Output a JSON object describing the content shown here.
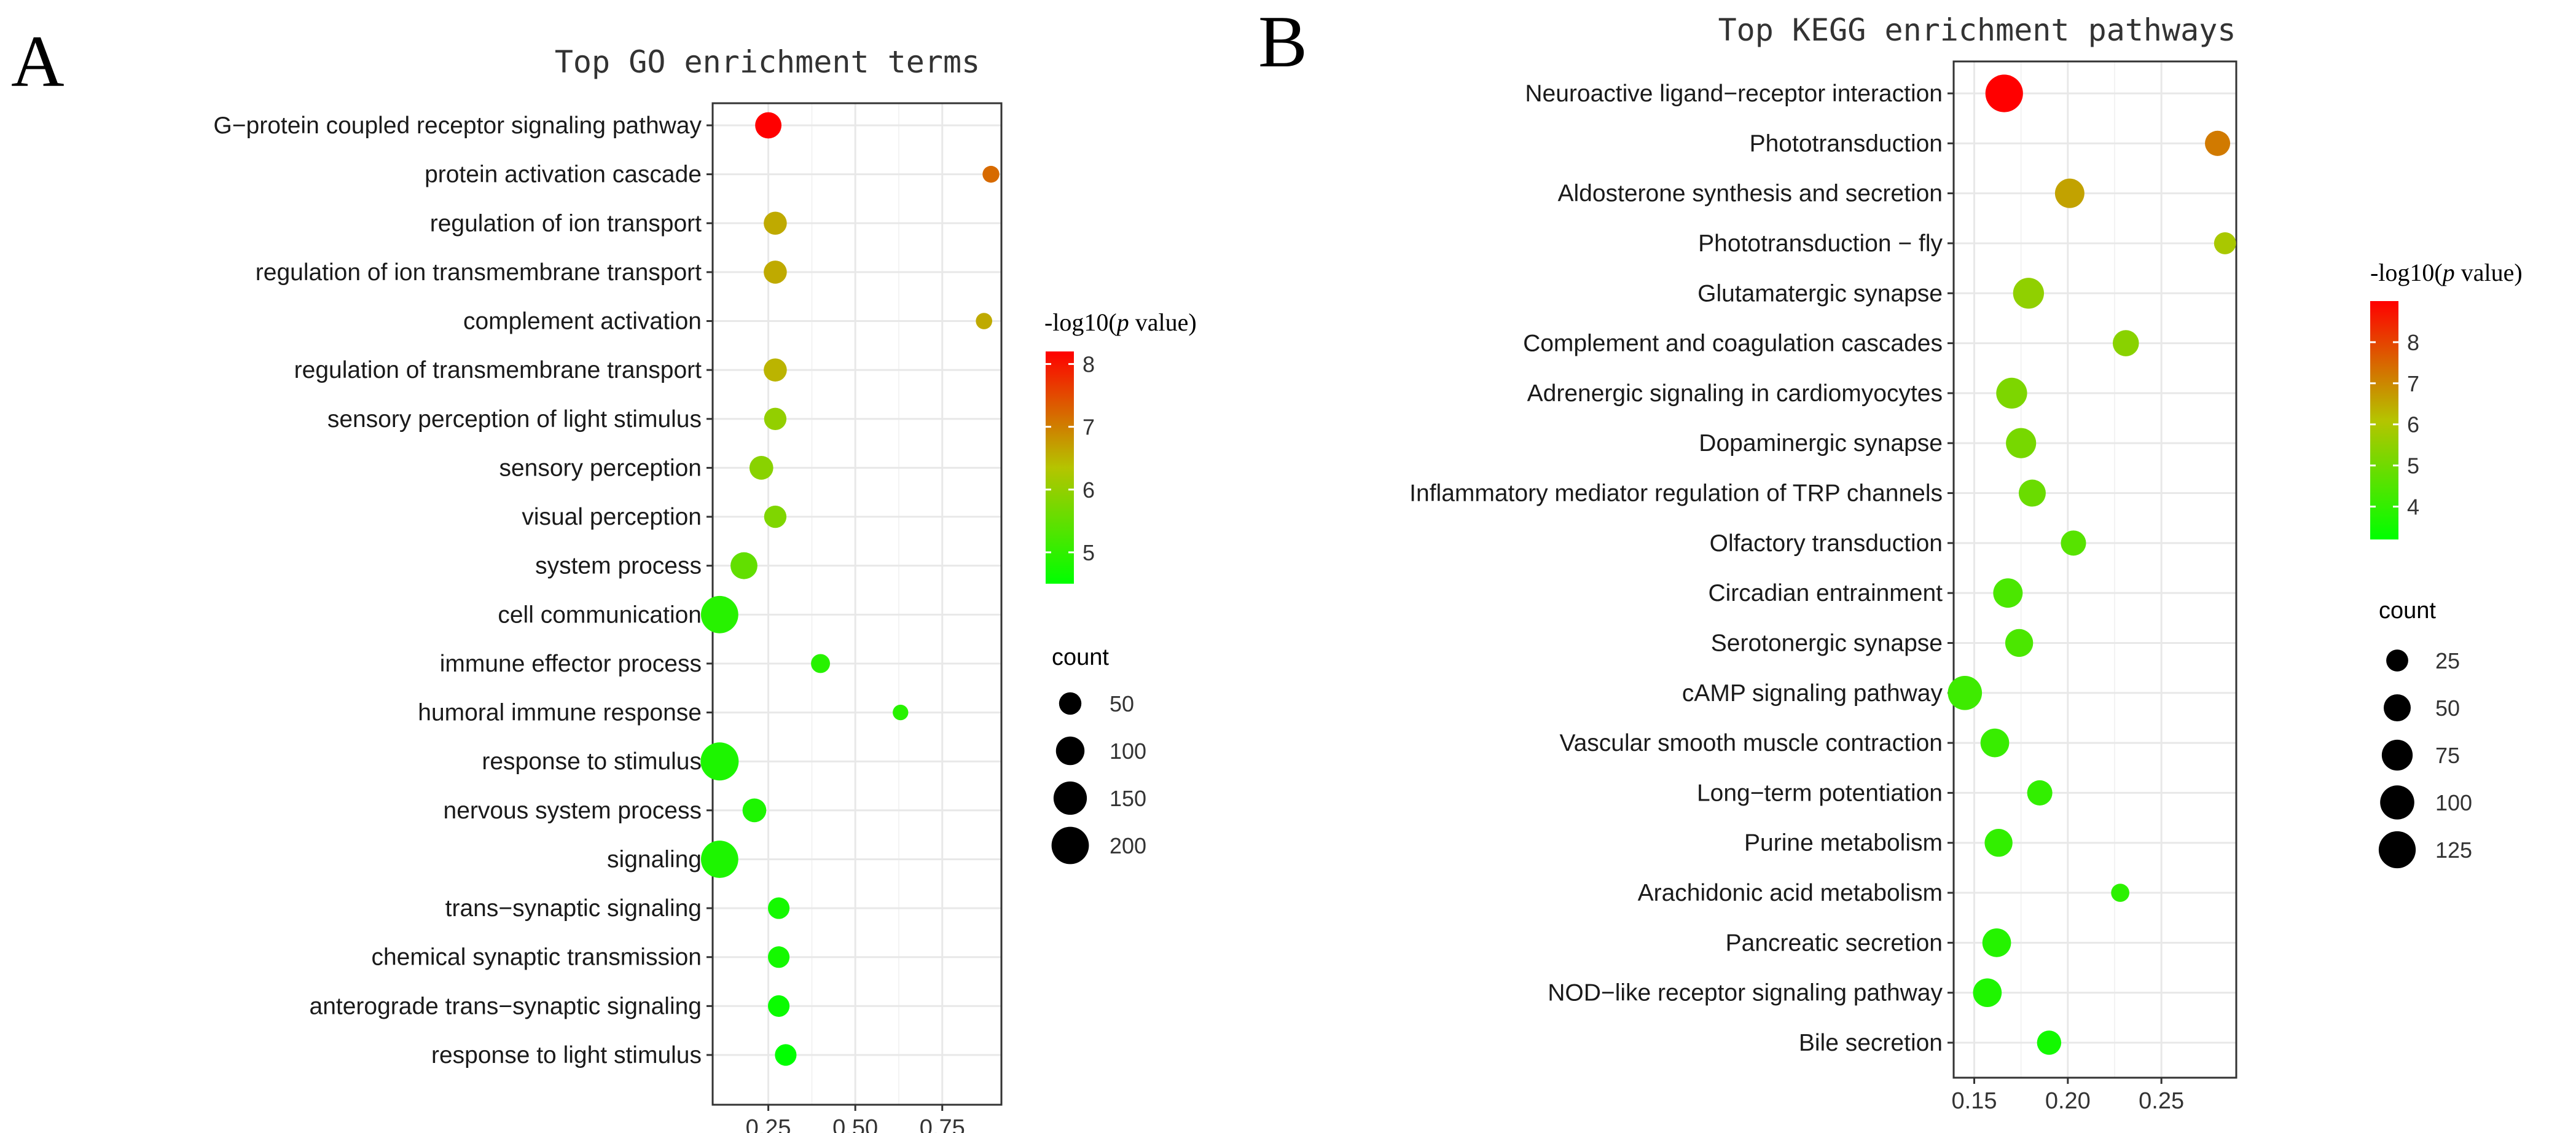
{
  "chart_data": [
    {
      "type": "scatter",
      "panel_label": "A",
      "title": "Top GO enrichment terms",
      "xlabel": "",
      "ylabel": "",
      "xlim": [
        0.09,
        0.92
      ],
      "xticks": [
        0.25,
        0.5,
        0.75
      ],
      "xtick_labels": [
        "0.25",
        "0.50",
        "0.75"
      ],
      "color_legend": {
        "title_prefix": "-log10(",
        "title_italic": "p",
        "title_suffix": " value)",
        "min": 4.5,
        "max": 8.2,
        "ticks": [
          8,
          7,
          6,
          5
        ],
        "tick_labels": [
          "8",
          "7",
          "6",
          "5"
        ]
      },
      "size_legend": {
        "title": "count",
        "values": [
          50,
          100,
          150,
          200
        ],
        "labels": [
          "50",
          "100",
          "150",
          "200"
        ],
        "max_count": 210
      },
      "categories": [
        "G−protein coupled receptor signaling pathway",
        "protein activation cascade",
        "regulation of ion transport",
        "regulation of ion transmembrane transport",
        "complement activation",
        "regulation of transmembrane transport",
        "sensory perception of light stimulus",
        "sensory perception",
        "visual perception",
        "system process",
        "cell communication",
        "immune effector process",
        "humoral immune response",
        "response to stimulus",
        "nervous system process",
        "signaling",
        "trans−synaptic signaling",
        "chemical synaptic transmission",
        "anterograde trans−synaptic signaling",
        "response to light stimulus"
      ],
      "x": [
        0.25,
        0.89,
        0.27,
        0.27,
        0.87,
        0.27,
        0.27,
        0.23,
        0.27,
        0.18,
        0.11,
        0.4,
        0.63,
        0.11,
        0.21,
        0.11,
        0.28,
        0.28,
        0.28,
        0.3
      ],
      "neg_log10_p": [
        8.2,
        7.2,
        6.6,
        6.6,
        6.6,
        6.5,
        6.0,
        5.9,
        5.8,
        5.5,
        4.9,
        4.9,
        4.9,
        4.8,
        4.8,
        4.8,
        4.7,
        4.7,
        4.6,
        4.5
      ],
      "count": [
        80,
        20,
        55,
        55,
        18,
        55,
        50,
        60,
        50,
        85,
        200,
        30,
        15,
        210,
        60,
        200,
        45,
        45,
        45,
        45
      ]
    },
    {
      "type": "scatter",
      "panel_label": "B",
      "title": "Top KEGG enrichment pathways",
      "xlabel": "",
      "ylabel": "",
      "xlim": [
        0.139,
        0.29
      ],
      "xticks": [
        0.15,
        0.2,
        0.25
      ],
      "xtick_labels": [
        "0.15",
        "0.20",
        "0.25"
      ],
      "color_legend": {
        "title_prefix": "-log10(",
        "title_italic": "p",
        "title_suffix": " value)",
        "min": 3.2,
        "max": 9.0,
        "ticks": [
          8,
          7,
          6,
          5,
          4
        ],
        "tick_labels": [
          "8",
          "7",
          "6",
          "5",
          "4"
        ]
      },
      "size_legend": {
        "title": "count",
        "values": [
          25,
          50,
          75,
          100,
          125
        ],
        "labels": [
          "25",
          "50",
          "75",
          "100",
          "125"
        ],
        "max_count": 135
      },
      "categories": [
        "Neuroactive ligand−receptor interaction",
        "Phototransduction",
        "Aldosterone synthesis and secretion",
        "Phototransduction − fly",
        "Glutamatergic synapse",
        "Complement and coagulation cascades",
        "Adrenergic signaling in cardiomyocytes",
        "Dopaminergic synapse",
        "Inflammatory mediator regulation of TRP channels",
        "Olfactory transduction",
        "Circadian entrainment",
        "Serotonergic synapse",
        "cAMP signaling pathway",
        "Vascular smooth muscle contraction",
        "Long−term potentiation",
        "Purine metabolism",
        "Arachidonic acid metabolism",
        "Pancreatic secretion",
        "NOD−like receptor signaling pathway",
        "Bile secretion"
      ],
      "x": [
        0.166,
        0.28,
        0.201,
        0.284,
        0.179,
        0.231,
        0.17,
        0.175,
        0.181,
        0.203,
        0.168,
        0.174,
        0.145,
        0.161,
        0.185,
        0.163,
        0.228,
        0.162,
        0.157,
        0.19
      ],
      "neg_log10_p": [
        9.0,
        7.2,
        6.6,
        5.9,
        5.5,
        5.4,
        5.2,
        5.1,
        4.9,
        4.6,
        4.4,
        4.4,
        4.2,
        4.1,
        4.0,
        4.0,
        3.9,
        3.8,
        3.7,
        3.5
      ],
      "count": [
        130,
        40,
        65,
        25,
        75,
        45,
        75,
        70,
        50,
        40,
        65,
        55,
        100,
        60,
        40,
        55,
        12,
        60,
        60,
        35
      ]
    }
  ]
}
